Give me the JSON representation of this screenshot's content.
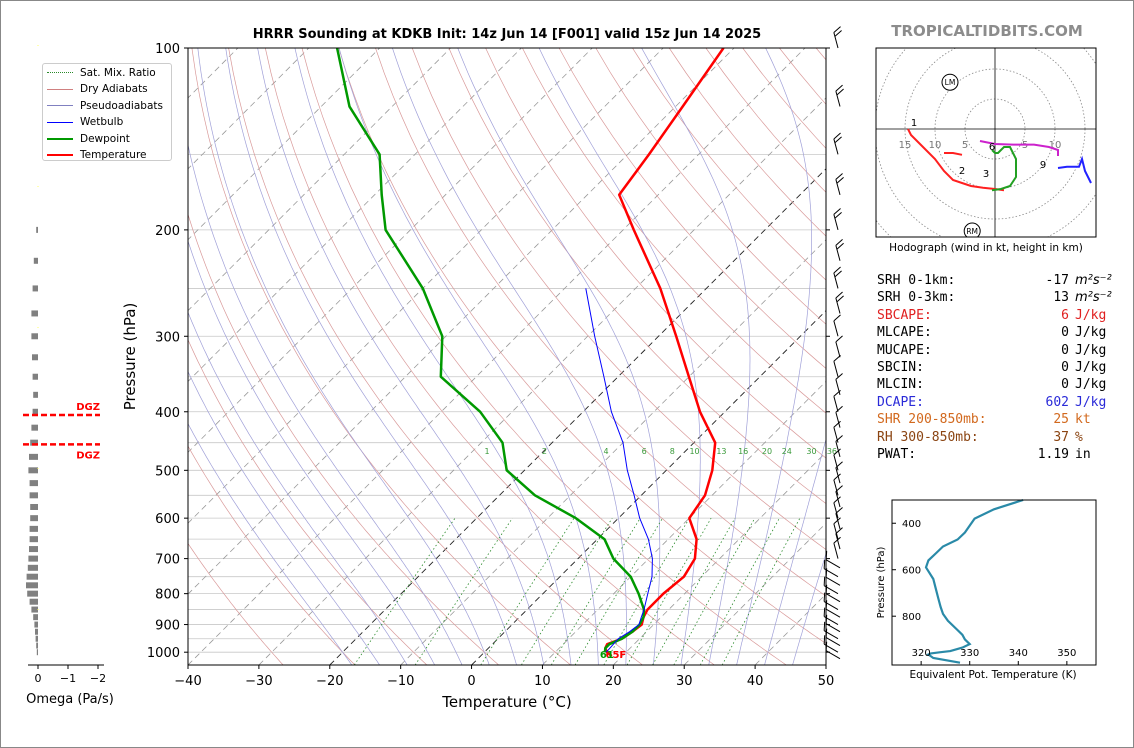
{
  "title": "HRRR Sounding at KDKB Init: 14z Jun 14 [F001] valid 15z Jun 14 2025",
  "brand": "TROPICALTIDBITS.COM",
  "legend": [
    {
      "label": "Sat. Mix. Ratio",
      "color": "#2a8a2a",
      "style": "dotted"
    },
    {
      "label": "Dry Adiabats",
      "color": "#d08080",
      "style": "solid"
    },
    {
      "label": "Pseudoadiabats",
      "color": "#8080c0",
      "style": "solid"
    },
    {
      "label": "Wetbulb",
      "color": "#0000ff",
      "style": "solid"
    },
    {
      "label": "Dewpoint",
      "color": "#009900",
      "style": "thick"
    },
    {
      "label": "Temperature",
      "color": "#ff0000",
      "style": "thick"
    }
  ],
  "stats": [
    {
      "key": "SRH 0-1km:",
      "value": "-17",
      "unit": "m²s⁻²",
      "color": "#000000"
    },
    {
      "key": "SRH 0-3km:",
      "value": "13",
      "unit": "m²s⁻²",
      "color": "#000000"
    },
    {
      "key": "SBCAPE:",
      "value": "6",
      "unit": "J/kg",
      "color": "#e02020"
    },
    {
      "key": "MLCAPE:",
      "value": "0",
      "unit": "J/kg",
      "color": "#000000"
    },
    {
      "key": "MUCAPE:",
      "value": "0",
      "unit": "J/kg",
      "color": "#000000"
    },
    {
      "key": "SBCIN:",
      "value": "0",
      "unit": "J/kg",
      "color": "#000000"
    },
    {
      "key": "MLCIN:",
      "value": "0",
      "unit": "J/kg",
      "color": "#000000"
    },
    {
      "key": "DCAPE:",
      "value": "602",
      "unit": "J/kg",
      "color": "#2a2ad8"
    },
    {
      "key": "SHR 200-850mb:",
      "value": "25",
      "unit": "kt",
      "color": "#d2691e"
    },
    {
      "key": "RH 300-850mb:",
      "value": "37",
      "unit": "%",
      "color": "#8b4513"
    },
    {
      "key": "PWAT:",
      "value": "1.19",
      "unit": "in",
      "color": "#000000"
    }
  ],
  "chart_data": [
    {
      "type": "line",
      "name": "skewt",
      "xlabel": "Temperature (°C)",
      "ylabel": "Pressure (hPa)",
      "xlim": [
        -40,
        50
      ],
      "ylim": [
        1050,
        100
      ],
      "y_log": true,
      "x_ticks": [
        -40,
        -30,
        -20,
        -10,
        0,
        10,
        20,
        30,
        40,
        50
      ],
      "y_ticks": [
        100,
        200,
        300,
        400,
        500,
        600,
        700,
        800,
        900,
        1000
      ],
      "mixing_ratio_labels": [
        1,
        2,
        4,
        6,
        8,
        10,
        13,
        16,
        20,
        24,
        30,
        36
      ],
      "surface_temp_label": "65F",
      "surface_dewp_label": "61",
      "series": [
        {
          "name": "Temperature",
          "color": "#ff0000",
          "p": [
            1015,
            1000,
            985,
            970,
            950,
            925,
            900,
            875,
            850,
            800,
            750,
            700,
            650,
            600,
            550,
            500,
            450,
            400,
            350,
            300,
            250,
            200,
            175,
            150,
            125,
            100
          ],
          "t": [
            18.5,
            17.3,
            16.5,
            16.2,
            17.5,
            18.0,
            18.3,
            17.5,
            17.0,
            17.0,
            17.5,
            16.5,
            14.0,
            10.0,
            9.0,
            6.5,
            3.0,
            -3.5,
            -10.0,
            -17.5,
            -26.5,
            -38.5,
            -45.5,
            -47.0,
            -49.0,
            -51.5
          ]
        },
        {
          "name": "Dewpoint",
          "color": "#009900",
          "p": [
            1000,
            985,
            970,
            950,
            925,
            900,
            875,
            850,
            800,
            750,
            700,
            650,
            600,
            550,
            500,
            450,
            400,
            350,
            300,
            250,
            200,
            175,
            150,
            125,
            100
          ],
          "t": [
            17.0,
            16.5,
            16.5,
            17.5,
            18.0,
            18.0,
            17.5,
            16.5,
            13.5,
            10.0,
            5.0,
            1.0,
            -6.0,
            -15.0,
            -22.5,
            -27.0,
            -34.5,
            -45.0,
            -50.5,
            -60.0,
            -73.5,
            -79.0,
            -85.0,
            -96.0,
            -106.0
          ]
        },
        {
          "name": "Wetbulb",
          "color": "#0000ff",
          "p": [
            1000,
            950,
            925,
            900,
            875,
            850,
            800,
            750,
            700,
            650,
            600,
            550,
            500,
            450,
            400,
            350,
            300,
            250
          ],
          "t": [
            17.2,
            17.0,
            17.6,
            17.9,
            17.2,
            16.5,
            14.8,
            13.0,
            10.5,
            7.2,
            3.0,
            -1.0,
            -5.5,
            -10.0,
            -16.0,
            -22.0,
            -29.0,
            -37.0
          ]
        }
      ]
    },
    {
      "type": "line",
      "name": "hodograph",
      "title": "Hodograph (wind in kt, height in km)",
      "rings": [
        5,
        10,
        15
      ],
      "ring_labels": [
        "15",
        "10",
        "5",
        "5",
        "10"
      ],
      "height_labels": [
        "1",
        "2",
        "3",
        "6",
        "9"
      ],
      "markers": [
        "LM",
        "RM"
      ],
      "segments": [
        {
          "color": "#ff2020",
          "u": [
            -14.5,
            -14.0,
            -12.0,
            -10.0,
            -8.5,
            -7.0,
            -5.5,
            -4.0,
            -2.0,
            0.0,
            1.5
          ],
          "v": [
            0.0,
            -1.0,
            -3.0,
            -5.0,
            -7.0,
            -8.5,
            -9.0,
            -9.5,
            -9.8,
            -10.0,
            -10.2
          ]
        },
        {
          "color": "#ff2020",
          "u": [
            -8.5,
            -7.0,
            -5.5
          ],
          "v": [
            -4.0,
            -4.0,
            -4.3
          ]
        },
        {
          "color": "#22a022",
          "u": [
            -0.5,
            1.0,
            2.5,
            3.5,
            3.5,
            2.5,
            1.5,
            0.5,
            0.0,
            -0.5
          ],
          "v": [
            -10.2,
            -10.0,
            -9.5,
            -8.0,
            -5.0,
            -3.0,
            -3.0,
            -4.0,
            -4.0,
            -3.5
          ]
        },
        {
          "color": "#cc22cc",
          "u": [
            -2.5,
            0.0,
            3.0,
            6.5,
            9.0,
            10.5,
            10.5
          ],
          "v": [
            -2.0,
            -2.5,
            -2.6,
            -2.6,
            -3.0,
            -3.5,
            -4.5
          ]
        },
        {
          "color": "#2222ff",
          "u": [
            10.5,
            12.0,
            14.0,
            14.5,
            15.0,
            16.0
          ],
          "v": [
            -6.5,
            -6.3,
            -6.3,
            -5.0,
            -7.0,
            -9.0
          ]
        }
      ]
    },
    {
      "type": "line",
      "name": "theta_e",
      "xlabel": "Equivalent Pot. Temperature (K)",
      "ylabel": "Pressure (hPa)",
      "xlim": [
        314,
        356
      ],
      "ylim": [
        1010,
        300
      ],
      "x_ticks": [
        320,
        330,
        340,
        350
      ],
      "y_ticks": [
        400,
        600,
        800
      ],
      "series": [
        {
          "name": "theta_e",
          "color": "#2a8aa8",
          "p": [
            1000,
            980,
            965,
            960,
            955,
            950,
            935,
            920,
            900,
            880,
            860,
            820,
            790,
            760,
            720,
            680,
            640,
            590,
            560,
            530,
            500,
            470,
            440,
            410,
            380,
            340,
            300
          ],
          "te": [
            328,
            322.5,
            321.5,
            322,
            324,
            326,
            328.5,
            330,
            329,
            328.5,
            327.5,
            325.5,
            324.5,
            324,
            323.5,
            323,
            322.5,
            321,
            321.5,
            323,
            324.5,
            327.5,
            329,
            330,
            331,
            335,
            341
          ]
        }
      ]
    },
    {
      "type": "bar",
      "name": "omega",
      "xlabel": "Omega (Pa/s)",
      "x_ticks": [
        "0",
        "−1",
        "−2"
      ],
      "dgz_label": "DGZ",
      "dgz_pressures": [
        405,
        453
      ],
      "p": [
        1000,
        975,
        950,
        925,
        900,
        875,
        850,
        825,
        800,
        775,
        750,
        725,
        700,
        675,
        650,
        625,
        600,
        575,
        550,
        525,
        500,
        475,
        450,
        425,
        400,
        375,
        350,
        325,
        300,
        275,
        250,
        225,
        200
      ],
      "values": [
        -0.1,
        -0.15,
        -0.2,
        -0.25,
        -0.3,
        -0.4,
        -0.55,
        -0.7,
        -0.9,
        -1.0,
        -0.95,
        -0.85,
        -0.8,
        -0.75,
        -0.7,
        -0.7,
        -0.65,
        -0.65,
        -0.7,
        -0.7,
        -0.8,
        -0.75,
        -0.65,
        -0.55,
        -0.45,
        -0.4,
        -0.45,
        -0.5,
        -0.55,
        -0.55,
        -0.45,
        -0.35,
        -0.15
      ]
    }
  ]
}
